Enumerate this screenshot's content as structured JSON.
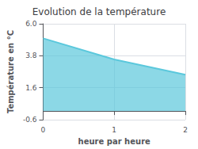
{
  "chart_data": {
    "type": "area",
    "title": "Evolution de la température",
    "x_label": "heure par heure",
    "y_label": "Température en °C",
    "x": [
      0,
      1,
      2
    ],
    "values": [
      5.0,
      3.55,
      2.5
    ],
    "color": "#5bc8dc",
    "xlim": [
      0,
      2
    ],
    "xticks": [
      0,
      1,
      2
    ],
    "ylim": [
      -0.6,
      6.0
    ],
    "yticks": [
      -0.6,
      1.6,
      3.8,
      {
        "value": 6.0,
        "label": "6.0"
      }
    ],
    "grid": true
  }
}
